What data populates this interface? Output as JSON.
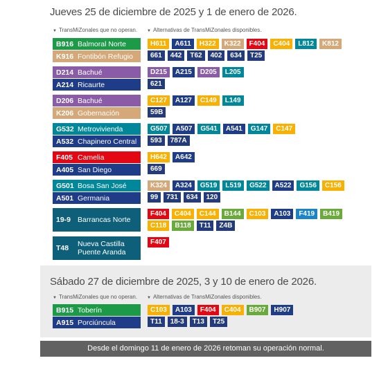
{
  "colors": {
    "red": "#e30613",
    "green": "#1d9a47",
    "orange": "#f9b000",
    "tan": "#d4a878",
    "lightgreen": "#6aaa3a",
    "purple": "#8a5ca8",
    "navy": "#1f3c88",
    "darkblue": "#243b7b",
    "blue": "#1a84c6",
    "teal": "#00889a",
    "darkteal": "#0e5f7a",
    "gray": "#616161"
  },
  "section1": {
    "title": "Jueves 25 de diciembre de 2025 y 1 de enero de 2026.",
    "left_caption": "TransMiZonales que no operan.",
    "right_caption": "Alternativas de TransMiZonales disponibles."
  },
  "section2": {
    "title": "Sábado 27 de diciembre de 2025, 3 y 10 de enero de 2026.",
    "left_caption": "TransMiZonales que no operan.",
    "right_caption": "Alternativas de TransMiZonales disponibles."
  },
  "groups": [
    {
      "routes": [
        {
          "code": "B916",
          "name": "Balmoral Norte",
          "color": "green"
        },
        {
          "code": "K916",
          "name": "Fontibón Refugio",
          "color": "tan"
        }
      ],
      "alternatives": [
        {
          "code": "H611",
          "color": "orange"
        },
        {
          "code": "A611",
          "color": "navy"
        },
        {
          "code": "H322",
          "color": "orange"
        },
        {
          "code": "K322",
          "color": "tan"
        },
        {
          "code": "F404",
          "color": "red"
        },
        {
          "code": "C404",
          "color": "orange"
        },
        {
          "code": "L812",
          "color": "teal"
        },
        {
          "code": "K812",
          "color": "tan"
        },
        {
          "code": "661",
          "color": "darkblue"
        },
        {
          "code": "442",
          "color": "darkblue"
        },
        {
          "code": "T62",
          "color": "darkblue"
        },
        {
          "code": "402",
          "color": "darkblue"
        },
        {
          "code": "634",
          "color": "darkblue"
        },
        {
          "code": "T25",
          "color": "darkblue"
        }
      ]
    },
    {
      "routes": [
        {
          "code": "D214",
          "name": "Bachué",
          "color": "purple"
        },
        {
          "code": "A214",
          "name": "Ricaurte",
          "color": "navy"
        }
      ],
      "alternatives": [
        {
          "code": "D215",
          "color": "purple"
        },
        {
          "code": "A215",
          "color": "navy"
        },
        {
          "code": "D205",
          "color": "purple"
        },
        {
          "code": "L205",
          "color": "teal"
        },
        {
          "code": "621",
          "color": "darkblue"
        }
      ]
    },
    {
      "routes": [
        {
          "code": "D206",
          "name": "Bachué",
          "color": "purple"
        },
        {
          "code": "K206",
          "name": "Gobernación",
          "color": "tan"
        }
      ],
      "alternatives": [
        {
          "code": "C127",
          "color": "orange"
        },
        {
          "code": "A127",
          "color": "navy"
        },
        {
          "code": "C149",
          "color": "orange"
        },
        {
          "code": "L149",
          "color": "teal"
        },
        {
          "code": "59B",
          "color": "darkblue"
        }
      ]
    },
    {
      "routes": [
        {
          "code": "G532",
          "name": "Metrovivienda",
          "color": "teal"
        },
        {
          "code": "A532",
          "name": "Chapinero Central",
          "color": "navy"
        }
      ],
      "alternatives": [
        {
          "code": "G507",
          "color": "teal"
        },
        {
          "code": "A507",
          "color": "navy"
        },
        {
          "code": "G541",
          "color": "teal"
        },
        {
          "code": "A541",
          "color": "navy"
        },
        {
          "code": "G147",
          "color": "teal"
        },
        {
          "code": "C147",
          "color": "orange"
        },
        {
          "code": "593",
          "color": "darkblue"
        },
        {
          "code": "787A",
          "color": "darkblue"
        }
      ]
    },
    {
      "routes": [
        {
          "code": "F405",
          "name": "Camelia",
          "color": "red"
        },
        {
          "code": "A405",
          "name": "San Diego",
          "color": "navy"
        }
      ],
      "alternatives": [
        {
          "code": "H642",
          "color": "orange"
        },
        {
          "code": "A642",
          "color": "navy"
        },
        {
          "code": "669",
          "color": "darkblue"
        }
      ]
    },
    {
      "routes": [
        {
          "code": "G501",
          "name": "Bosa San José",
          "color": "teal"
        },
        {
          "code": "A501",
          "name": "Germania",
          "color": "navy"
        }
      ],
      "alternatives": [
        {
          "code": "K324",
          "color": "tan"
        },
        {
          "code": "A324",
          "color": "navy"
        },
        {
          "code": "G519",
          "color": "teal"
        },
        {
          "code": "L519",
          "color": "teal"
        },
        {
          "code": "G522",
          "color": "teal"
        },
        {
          "code": "A522",
          "color": "navy"
        },
        {
          "code": "G156",
          "color": "teal"
        },
        {
          "code": "C156",
          "color": "orange"
        },
        {
          "code": "99",
          "color": "darkblue"
        },
        {
          "code": "731",
          "color": "darkblue"
        },
        {
          "code": "634",
          "color": "darkblue"
        },
        {
          "code": "120",
          "color": "darkblue"
        }
      ]
    },
    {
      "routes": [
        {
          "code": "19-9",
          "name": "Barrancas Norte",
          "color": "darkteal"
        }
      ],
      "alternatives": [
        {
          "code": "F404",
          "color": "red"
        },
        {
          "code": "C404",
          "color": "orange"
        },
        {
          "code": "C144",
          "color": "orange"
        },
        {
          "code": "B144",
          "color": "lightgreen"
        },
        {
          "code": "C103",
          "color": "orange"
        },
        {
          "code": "A103",
          "color": "navy"
        },
        {
          "code": "F419",
          "color": "blue"
        },
        {
          "code": "B419",
          "color": "lightgreen"
        },
        {
          "code": "C118",
          "color": "orange"
        },
        {
          "code": "B118",
          "color": "lightgreen"
        },
        {
          "code": "T11",
          "color": "darkblue"
        },
        {
          "code": "Z4B",
          "color": "darkblue"
        }
      ]
    },
    {
      "routes": [
        {
          "code": "T48",
          "name": "Nueva Castilla Puente Aranda",
          "color": "darkteal"
        }
      ],
      "alternatives": [
        {
          "code": "F407",
          "color": "red"
        }
      ]
    },
    {
      "routes": [
        {
          "code": "B915",
          "name": "Toberín",
          "color": "green"
        },
        {
          "code": "A915",
          "name": "Porciúncula",
          "color": "navy"
        }
      ],
      "alternatives": [
        {
          "code": "C103",
          "color": "orange"
        },
        {
          "code": "A103",
          "color": "navy"
        },
        {
          "code": "F404",
          "color": "red"
        },
        {
          "code": "C404",
          "color": "orange"
        },
        {
          "code": "B907",
          "color": "lightgreen"
        },
        {
          "code": "H907",
          "color": "navy"
        },
        {
          "code": "T11",
          "color": "darkblue"
        },
        {
          "code": "18-3",
          "color": "darkblue"
        },
        {
          "code": "T13",
          "color": "darkblue"
        },
        {
          "code": "T25",
          "color": "darkblue"
        }
      ]
    }
  ],
  "footer": "Desde el domingo 11 de enero de 2026 retoman su operación normal."
}
